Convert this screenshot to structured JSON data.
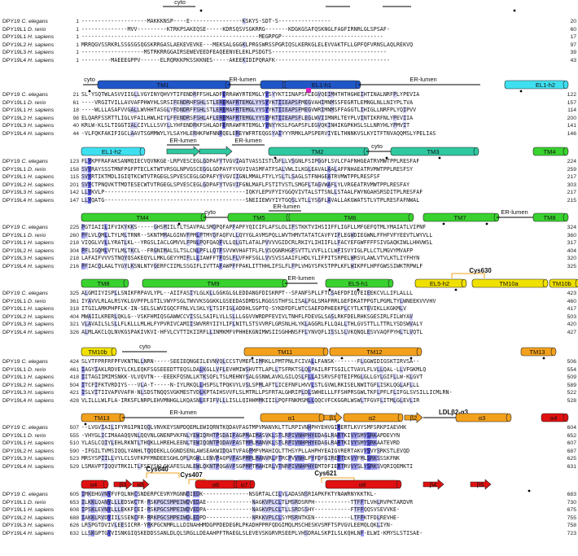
{
  "species": [
    {
      "gene": "DPY19",
      "org": "C. elegans"
    },
    {
      "gene": "DPY19L1",
      "org": "D. rerio"
    },
    {
      "gene": "DPY19L1",
      "org": "H. sapiens"
    },
    {
      "gene": "DPY19L2",
      "org": "H. sapiens"
    },
    {
      "gene": "DPY19L3",
      "org": "H. sapiens"
    },
    {
      "gene": "DPY19L4",
      "org": "H. sapiens"
    }
  ],
  "colors": {
    "tm": "#1f56c8",
    "el_blue": "#1f56c8",
    "cyan": "#3ee0f0",
    "teal": "#2ec8a0",
    "green": "#39d22f",
    "yellow": "#f0e000",
    "orange": "#f3a11d",
    "red": "#e01010",
    "magenta": "#e020c0",
    "highlight_dark": "#5c5ce0",
    "highlight_mid": "#9a9af0",
    "highlight_light": "#cfcff7"
  },
  "blocks": [
    {
      "labels": [
        {
          "text": "cyto"
        }
      ],
      "elements": [],
      "rows": [
        {
          "start": "1",
          "seq": "--------------------MAKKKNSP----E----------------KSKYS-SDT-S----------------",
          "end": "20"
        },
        {
          "start": "1",
          "seq": "--------------MVV---------KTRKPSAKEQSE-----KDRSQSVSGKRRG-------KDGKGSAFQSKNGLFAGFIRNRLGLSPSAF-",
          "end": "60"
        },
        {
          "start": "1",
          "seq": "------------------------------------------------------MEGRPGP-------------------------------",
          "end": "17"
        },
        {
          "start": "1",
          "seq": "MRRQGVSSRKRLSSGSGSQGSKRRGASLAEKEVEVKE---MEKSALGGGKLPRGSWRSSPGRIQSLKERKGLELEVVAKTFLLGPFQFVRNSLAQLREKVQ",
          "end": "97"
        },
        {
          "start": "1",
          "seq": "-------------------MSTRKRRGGAIRSEWEVEEDFEAQEENVELEKLPSDGTS-----------------------------------",
          "end": "39"
        },
        {
          "start": "1",
          "seq": "---------MAEEEGPPV------ELRQRKKPKSSKKNES-----AKEEKIDIPQRAFK-----------------------------------",
          "end": "43"
        }
      ]
    },
    {
      "labels": [
        {
          "text": "cyto"
        },
        {
          "text": "TM1"
        },
        {
          "text": "ER-lumen"
        },
        {
          "text": "EL1-h1"
        },
        {
          "text": "ER-lumen"
        },
        {
          "text": "EL1-h2"
        }
      ],
      "elements": [],
      "rows": [
        {
          "start": "21",
          "seq": "SL-YSQTWLASVVIIGLLVGYINYQHVYTIFENDRFFSHLADFERRAWYRTEMGLYYSYYKTIINAPSFLEGVQEIMHTHTHGHEIHTINALNRFPLYPEVIA",
          "end": "122"
        },
        {
          "start": "61",
          "seq": "----VRGITVILLAVVAFPHWYHLSRSIFENDRHFSHLSTLEREMAFRTEMGLYYSYYKTIIEAPSFMEGVAHIMNMSSFEGRTLEMNGLNLLNIYPLTVA",
          "end": "157"
        },
        {
          "start": "18",
          "seq": "----WLLLASAFVVGALLWVHHTASGLYFDNDRFFSHLSTLEREMAFRTEMGLYYSYYKTIIEAPSFMEGVWRIMNMSFFAGGTLIHIGLLNRFPLYQIPVV",
          "end": "114"
        },
        {
          "start": "98",
          "seq": "ELQARFSSRTTLIGLVFAILHWLHIYLFFENDRSFSHLAFLEREMAFRTEMGLYYSYFKTIIEAPSFLEGLWVIIMNRLTEYPLVINTIKRFNLYPEVIIA",
          "end": "200"
        },
        {
          "start": "40",
          "seq": "KRLW-KLSLTIGGTIALCIYLLLSVYLLYHFENDRKFSHLADFERRAWFRTEMGLYYNYYKSLFGAPSFLEGVQKINHIKGPKHSLSLLNRYHLYPMVIT",
          "end": "141"
        },
        {
          "start": "44",
          "seq": "-VLFQKFAKIFIGCLAAVTSGMMWYLYLSAYHLERHKFWFNNRQELEREYWFRTEQGSYAIYYYRMKLAPSPERVIYELTHNNKVSLKYITFTNVAQQMSLYPELIAS",
          "end": "146"
        }
      ]
    },
    {
      "labels": [
        {
          "text": "EL1-h2"
        },
        {
          "text": "ER-lumen"
        },
        {
          "text": "ER-lumen"
        },
        {
          "text": "TM2"
        },
        {
          "text": "cyto"
        },
        {
          "text": "TM3"
        },
        {
          "text": "TM4"
        }
      ],
      "elements": [],
      "rows": [
        {
          "start": "123",
          "seq": "FLYKPFRAFAKSANMQIECVQVNKGE-LRPVESCEGLGDPAFYTVGVIAGTVASSISTLGFLLVSGNLFSIPGGFLSVLCFAFNHGEATRVMWTPPLRESFAF",
          "end": "224"
        },
        {
          "start": "158",
          "seq": "SVYRAYSSSTMNFPGFPTECLKTWTVRSGLNPVGSCEGGLGDPAYFYVGVIVASMFATFSALVWLILKGLEAVALAALAFFNHAEATRVMWTPPLRESFSY",
          "end": "259"
        },
        {
          "start": "115",
          "seq": "SVYRTIKTMDLIGIQTKCWTVTRGEGLSPVESCEGLGDPAFYYVGVIIGNLMMALFTYLYSLTLSAGLSTFNHGEATRVMWTPPLRESFSF",
          "end": "217"
        },
        {
          "start": "201",
          "seq": "SVYCTPNQVKTTMDTESECWTVTRGEGLSPVESCEGLGDPAFYTVGVIFGNLMAFLFSTITVSTLSMGFLTAGVWAFLYLVRGEATRVMWTPPLRESFAY",
          "end": "303"
        },
        {
          "start": "142",
          "seq": "LLYKVLP-------------------------------------------IQKYLEPVFYIYGGQVIVTALSTTSNLLSTAALFWYNGAHSRSDITPLRESFAF",
          "end": "217"
        },
        {
          "start": "147",
          "seq": "LLYQATG-------------------------------------------SNEIIEWVYIYTGQSLVTLLYSGFLAVALLAKGWATSTLVTPLRESFAFNWAL",
          "end": "215"
        }
      ]
    },
    {
      "labels": [
        {
          "text": "TM4"
        },
        {
          "text": "cyto"
        },
        {
          "text": "TM5"
        },
        {
          "text": "ER-lumen"
        },
        {
          "text": "TM6"
        },
        {
          "text": "TM7"
        },
        {
          "text": "ER-lumen"
        },
        {
          "text": "TM8"
        }
      ],
      "elements": [],
      "rows": [
        {
          "start": "225",
          "seq": "PGTIAIILIFVIKYKKS-----GHSMIILTLTSAVPALSMQPQFAPFAPFYQICIFLAFSLOLIFSTKKTVIHSIIFFLIGFLLMFGEFQTMLYMAIATLVIPNF",
          "end": "324"
        },
        {
          "start": "260",
          "seq": "PFLVLQMLLTYLMLTRNR--SKNTMMALGINVFPMLPTMYQFAQFVLLQYYGLAVMSPQLLWVTHMVTATATCAVFYIFLEGWDIEGWNLFFHFVFYEEVTLWYVLL",
          "end": "360"
        },
        {
          "start": "218",
          "seq": "VIQGLVVLLYRATLKL--YRGSLIACLGMVVLFPNLPQFQAQFVLLQLGTLATALPVVVVGIDCRLRKIYLIHIIFLLFACYEFGWFFFFSIVGAQKIWLLHHVWSL",
          "end": "317"
        },
        {
          "start": "304",
          "seq": "PFLIGQMLVTYLMLTKCL--FRGNIMALSLTSLCNLPFLLQTFSVVWVHAFTFLFLVSQGNRHGFSVTTLVVFLLCLWFISVYIGLPLLCTLMGVYMVAFP",
          "end": "404"
        },
        {
          "start": "218",
          "seq": "LAFAIFVVVSTNQYQSAKEQYLLMKLGEYYMIFLLLIAWFFTFQSLFLVFHFSGLLVVSVSSAAIFLHDLYLIFPITSRPELWRSVLAWLVTVLKTLIYFHYN",
          "end": "320"
        },
        {
          "start": "216",
          "seq": "PFIACQLAALTYGYLKSNLNTYGERFCIIMLSSGIFLIVTTAFAWPFFPAKLITTHHLIFSLFLFPLVHGYSFKSTPPLKFLWIKPFLHPFGWSSIWKTRPWLF",
          "end": "325"
        }
      ]
    },
    {
      "labels": [
        {
          "text": "TM8"
        },
        {
          "text": "TM9"
        },
        {
          "text": "ER-lumen"
        },
        {
          "text": "EL5-h1"
        },
        {
          "text": "EL5-h2"
        },
        {
          "text": "Cys630"
        },
        {
          "text": "TM10a"
        },
        {
          "text": "TM10b"
        }
      ],
      "elements": [],
      "rows": [
        {
          "start": "325",
          "seq": "ALGMIIYISPLLSNIKFRPAVLYPL--AIIFASIYLGLKLLGGKGLGLEDDANGFDISKRPT--SFANFSPLLFTCSAEFDFIQYEIEEKCVLLIFLALLL",
          "end": "423"
        },
        {
          "start": "361",
          "seq": "IYAVVLRLALRSYKLGVPFPLGTILVWYFSGLTWVVKSGGKKLGSEEDASDMDSLRGGSSTHFSLISALFGLSMAFRRLGEFDKATPPGTLPGMLTYLWNEEKVVVHV",
          "end": "460"
        },
        {
          "start": "318",
          "seq": "ITGILAMKPHPFLK-IN-SELSLWVIGQCFFNLVLSKLYLTSIFIGLADDHLSGPTQ-SYKDFDFLWTCSAEFDPHEEKPLCYTLKTEVIKLLKGKMLV",
          "end": "417"
        },
        {
          "start": "404",
          "seq": "MWAIILKRERLQKLG--VSKFHMIQSGAWWCCVISSLSAIFLVLLSLLLGGVVWRDPFEVIVLTNHFLFDEVGLSASLRKFDELRHKSGESIRLFILWYAV",
          "end": "503"
        },
        {
          "start": "321",
          "seq": "VLAVAILSLSLLFLKLLLMLHLFYPVRIVCAMIISWVRRYIIYLIFLNITLSTSVVRFLGRSNLHLYKLAGGRLFLLQALLTHLGVSTTLLTTRLYSDSWVALY",
          "end": "420"
        },
        {
          "start": "326",
          "seq": "ALMLAKCLQLNVKGSPAKIVKVI-HFVLCVTTIKIIRFLLINMKMFVPHHEKGNIMWSIISGHHNSFFLYNVQFLISSLSLVKQNQLESVVAQFPYHLTLVQTL",
          "end": "427"
        }
      ]
    },
    {
      "labels": [
        {
          "text": "TM10b"
        },
        {
          "text": "cyto"
        },
        {
          "text": "TM11"
        },
        {
          "text": "TM12"
        },
        {
          "text": "TM13"
        }
      ],
      "elements": [],
      "rows": [
        {
          "start": "424",
          "seq": "SLVTFPRFRFPFVKNTNLLNRN-----SEEIEQNGEILEVNVQLCCSTVMEFLIMRKLLPMTPNLFCIVALLFANSK-------FLGGWIDIGSKTIRVSA--",
          "end": "506"
        },
        {
          "start": "461",
          "seq": "IAGYIAKLRDVEYLCKLEQKFSGSEEEDTTEQSLDALKGLLVFLEVHMIWSHVTTLAPLLTSFRKTSLQLPAILRFTSGILCTVAVLFLVLLQAL-LLVFGKMLQ",
          "end": "554"
        },
        {
          "start": "418",
          "seq": "IITAGIIMIMSNKK-VLVQVTN---EEEKFQSNLLKTKSQFLTSLMEHNYSALGSNWLAVKLGILQSLFLLAISRVSFQTEIFMGLGLLGYLGIFLLW-KLGVT",
          "end": "509"
        },
        {
          "start": "504",
          "seq": "ITCFIFKTVRDIYS---VLA-T-----N-IYLRKQLLHSPSLTPQKVYLVSLSPMLAFTLICEFNFLHVVLSTLGVWLRKISELNWITGFLISKLQGLAFLLL",
          "end": "589"
        },
        {
          "start": "421",
          "seq": "ISLVITIIVAPVVAFH-NLSDSTNQQSVGKMESTVDLKPTAIHSVVFLSLMTRLLPSFRTALGHRIPLDLSWHELLLFFSHPRSGWLTKFLPFLFLIFGLSVSILLICMLRN-",
          "end": "522"
        },
        {
          "start": "428",
          "seq": "VLILLLWLFLA-IRKSFLNRPLEHVMNHGLLKQASNLEFIFVLLLISLLQIHHMMKIIILPQFFNKMSMLLQQCVFCKGGRLWSWLTFGVFLITMLGLEVLIR",
          "end": "528"
        }
      ]
    },
    {
      "labels": [
        {
          "text": "TM13"
        },
        {
          "text": "ER-lumen"
        },
        {
          "text": "α1"
        },
        {
          "text": "β1"
        },
        {
          "text": "α2"
        },
        {
          "text": "β2"
        },
        {
          "text": "LDLβ2-α3"
        },
        {
          "text": "α3"
        },
        {
          "text": "α4"
        }
      ],
      "elements": [],
      "rows": [
        {
          "start": "507",
          "seq": "--LVGVIAILIFYRGIPNIQQLVNVKEYSNPDQEMLEWIQRNTKQDAVFAGTMPVMANVKLTTLRPIVNHPHYEHVGIRERTLKVYSMFSRKPIAEVHK",
          "end": "604"
        },
        {
          "start": "555",
          "seq": "-VHYGLICIMAAAQQVNLQQVNLGNENPVKFNLYEWIQRHTPSDAIFAGPMAIMASVKLSTLRPIVNHPHYEDAGLRARTKIVYSMYSRKAPDEVYN",
          "end": "652"
        },
        {
          "start": "510",
          "seq": "YLASLCQIYLEHLRKNTLTHQKLLHREHLEENLTEWIQQNTPQDAVFASTMPLMANVKLSTLRPIVNHPHYEDAGLRARTKIVYSMYSRKAATEVRD",
          "end": "607"
        },
        {
          "start": "590",
          "seq": "-IFGILTVMSIQQLYANHLTQQDEKLLGGNDSENLAWSEAKWIDQATVFAGPMPVMAHIQLTTHSYPLLAHPHYEAIGVRERTAKVYSVYSRKSTLEVQD",
          "end": "687"
        },
        {
          "start": "523",
          "seq": "MRSYSPIILLVYLCLSVFKPFMNDEESGHLQPLRGWLLENVPAQPVFASPMPLMANVRLFTRCPVVNHLPYFDFGIRERTEKVYFMLSRKSSSKFNK",
          "end": "625"
        },
        {
          "start": "529",
          "seq": "LSMAVPTIQQVTRKILTLFSEYSKLGKAFESLNLEWLQKNTPQGAVFSGPMPTMAHIRLVTNRPIVNHPHYEMTDFIERTRVVYSLYSRKSVQRIQEMKTI",
          "end": "631"
        }
      ]
    },
    {
      "labels": [
        {
          "text": "α4"
        },
        {
          "text": "β3"
        },
        {
          "text": "α5"
        },
        {
          "text": "Cys640"
        },
        {
          "text": "Cys407"
        },
        {
          "text": "α6"
        },
        {
          "text": "α7"
        },
        {
          "text": "Cys621"
        },
        {
          "text": "α8"
        },
        {
          "text": "β4"
        },
        {
          "text": "β5"
        }
      ],
      "elements": [],
      "rows": [
        {
          "start": "605",
          "seq": "IMKEHGVNYFVFQLNHCSNDERPCEVRYRGNNDIEDK--------------NSGRTALCILVLADASNSRIAPKFKTYNAWRNYKKTKL-",
          "end": "683"
        },
        {
          "start": "653",
          "seq": "ILKKLQANYLLLEDSWCTR-RSKPGCSMPEIWDVEDAE--------------NAGKVPLCLTLMSRDSRPH-----------TTFFTLVHLRVPKTARDVR",
          "end": "730"
        },
        {
          "start": "608",
          "seq": "IPSKLEVNYLLLEKKFCEI-RSKPGCSMPEIWDVEDPA--------------NAGKVPLCLTLLSRDSSHY-----------FTFFQQSVSEVVKE-",
          "end": "675"
        },
        {
          "start": "688",
          "seq": "IAKKLRVDYIILSSENCFR-RRKPGCSMPEIWDLEDPD--------------NRKKVPLCLSYMSRNTKEN-----------LTFFKTFDLREVHE-",
          "end": "755"
        },
        {
          "start": "626",
          "seq": "LRSPGTDVIVLEESICRR-YRKPGCNMRLLLDINAHHMDGPPDEDEGRLPKADHPPRFQDGIMQLMSCHESKVSMFTSPVGVLEEMQLQKLIYN-",
          "end": "758"
        },
        {
          "start": "632",
          "seq": "LLSKGPTGYVISNKGIQSKEDDSSANLDLQLSRGLLDEAAHPFTRAEGLSLEVEVSKGRVRSEEPLVHSDRALSKPILSLKQHLNF-ELWI-KMYSLSTISAE-",
          "end": "723"
        }
      ]
    }
  ]
}
